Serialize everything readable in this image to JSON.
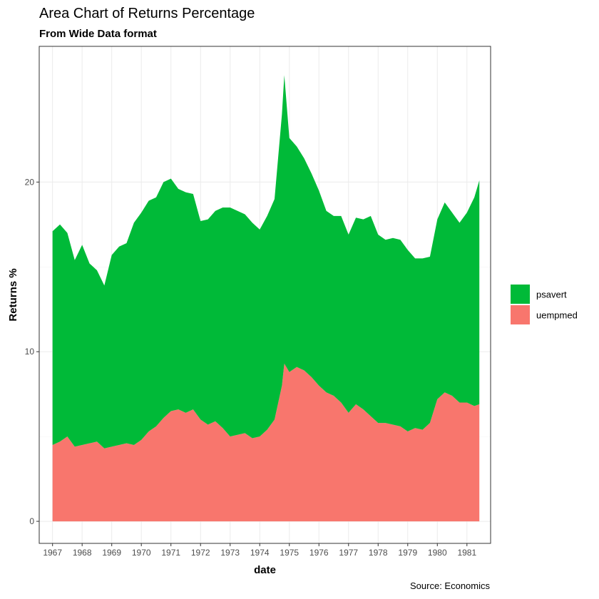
{
  "chart_data": {
    "type": "area",
    "stacked": true,
    "title": "Area Chart of Returns Percentage",
    "subtitle": "From Wide Data format",
    "xlabel": "date",
    "ylabel": "Returns %",
    "caption": "Source: Economics",
    "xlim": [
      1966.55,
      1981.8
    ],
    "ylim": [
      -1.3,
      28.0
    ],
    "x_ticks": [
      "1967",
      "1968",
      "1969",
      "1970",
      "1971",
      "1972",
      "1973",
      "1974",
      "1975",
      "1976",
      "1977",
      "1978",
      "1979",
      "1980",
      "1981"
    ],
    "y_ticks": [
      "0",
      "10",
      "20"
    ],
    "grid": true,
    "legend_position": "right",
    "colors": {
      "psavert": "#00BA38",
      "uempmed": "#F8766D",
      "grid": "#EBEBEB",
      "axis": "#333333"
    },
    "series_order_bottom_to_top": [
      "uempmed",
      "psavert"
    ],
    "legend": [
      {
        "name": "psavert",
        "color": "#00BA38"
      },
      {
        "name": "uempmed",
        "color": "#F8766D"
      }
    ],
    "x": [
      1967.0,
      1967.25,
      1967.5,
      1967.75,
      1968.0,
      1968.25,
      1968.5,
      1968.75,
      1969.0,
      1969.25,
      1969.5,
      1969.75,
      1970.0,
      1970.25,
      1970.5,
      1970.75,
      1971.0,
      1971.25,
      1971.5,
      1971.75,
      1972.0,
      1972.25,
      1972.5,
      1972.75,
      1973.0,
      1973.25,
      1973.5,
      1973.75,
      1974.0,
      1974.25,
      1974.5,
      1974.75,
      1974.83,
      1975.0,
      1975.25,
      1975.5,
      1975.75,
      1976.0,
      1976.25,
      1976.5,
      1976.75,
      1977.0,
      1977.25,
      1977.5,
      1977.75,
      1978.0,
      1978.25,
      1978.5,
      1978.75,
      1979.0,
      1979.25,
      1979.5,
      1979.75,
      1980.0,
      1980.25,
      1980.5,
      1980.75,
      1981.0,
      1981.25,
      1981.42
    ],
    "series": [
      {
        "name": "uempmed",
        "values": [
          4.5,
          4.7,
          5.0,
          4.4,
          4.5,
          4.6,
          4.7,
          4.3,
          4.4,
          4.5,
          4.6,
          4.5,
          4.8,
          5.3,
          5.6,
          6.1,
          6.5,
          6.6,
          6.4,
          6.6,
          6.0,
          5.7,
          5.9,
          5.5,
          5.0,
          5.1,
          5.2,
          4.9,
          5.0,
          5.4,
          6.0,
          8.0,
          9.3,
          8.8,
          9.1,
          8.9,
          8.5,
          8.0,
          7.6,
          7.4,
          7.0,
          6.4,
          6.9,
          6.6,
          6.2,
          5.8,
          5.8,
          5.7,
          5.6,
          5.3,
          5.5,
          5.4,
          5.8,
          7.2,
          7.6,
          7.4,
          7.0,
          7.0,
          6.8,
          6.9
        ]
      },
      {
        "name": "psavert",
        "values": [
          12.6,
          12.8,
          12.0,
          11.0,
          11.8,
          10.6,
          10.1,
          9.6,
          11.3,
          11.7,
          11.8,
          13.1,
          13.4,
          13.6,
          13.5,
          13.9,
          13.7,
          13.0,
          13.0,
          12.7,
          11.7,
          12.1,
          12.4,
          13.0,
          13.5,
          13.2,
          12.9,
          12.7,
          12.2,
          12.6,
          13.0,
          16.0,
          17.0,
          13.8,
          13.0,
          12.5,
          12.0,
          11.5,
          10.7,
          10.6,
          11.0,
          10.5,
          11.0,
          11.2,
          11.8,
          11.1,
          10.8,
          11.0,
          11.0,
          10.7,
          10.0,
          10.1,
          9.8,
          10.6,
          11.2,
          10.8,
          10.6,
          11.2,
          12.3,
          13.2
        ]
      }
    ]
  }
}
